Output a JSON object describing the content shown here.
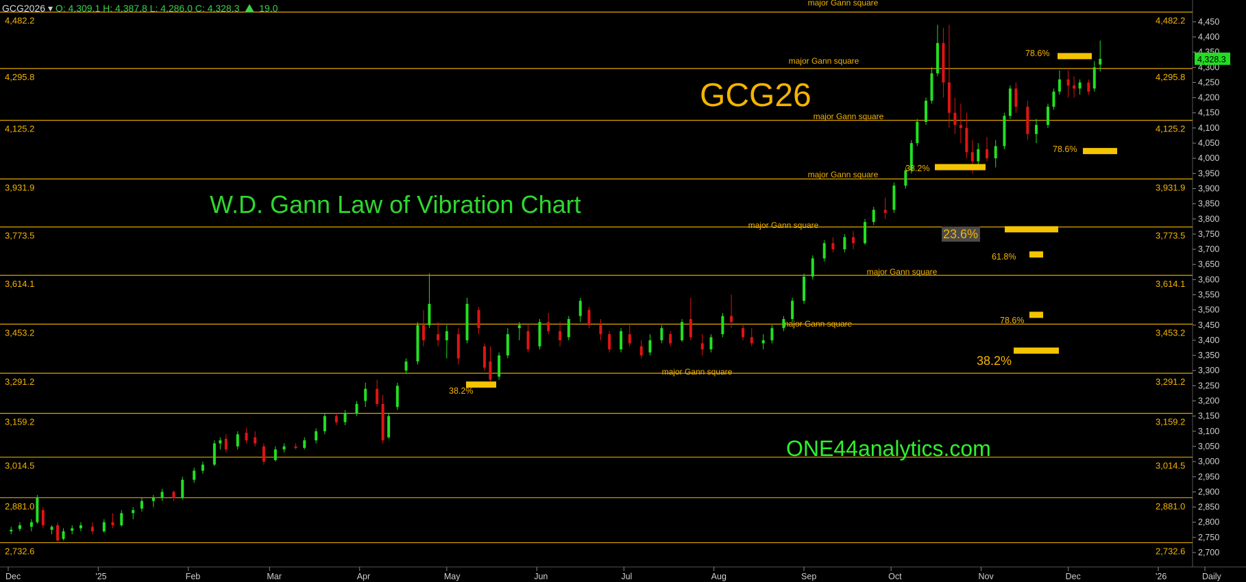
{
  "header": {
    "symbol": "GCG2026",
    "dropdown_icon": "chevron-down-icon",
    "ohlc_text": "O: 4,309.1 H: 4,387.8 L: 4,286.0 C: 4,328.3",
    "change_icon": "up-triangle-icon",
    "change": "19.0"
  },
  "titles": {
    "contract": "GCG26",
    "chart_name": "W.D. Gann Law of Vibration Chart",
    "website": "ONE44analytics.com"
  },
  "colors": {
    "background": "#000000",
    "gann_line": "#e0a800",
    "gann_label": "#f5b400",
    "up_candle": "#22e022",
    "down_candle": "#e01414",
    "axis_text": "#d0d0d0",
    "last_price_bg": "#22dd22",
    "retracement_bar": "#f5c400"
  },
  "chart_data": {
    "type": "candlestick",
    "timeframe": "Daily",
    "ylim": [
      2700,
      4470
    ],
    "y_ticks": [
      2700,
      2750,
      2800,
      2850,
      2900,
      2950,
      3000,
      3050,
      3100,
      3150,
      3200,
      3250,
      3300,
      3350,
      3400,
      3450,
      3500,
      3550,
      3600,
      3650,
      3700,
      3750,
      3800,
      3850,
      3900,
      3950,
      4000,
      4050,
      4100,
      4150,
      4200,
      4250,
      4300,
      4350,
      4400,
      4450
    ],
    "x_ticks": [
      "Dec",
      "'25",
      "Feb",
      "Mar",
      "Apr",
      "May",
      "Jun",
      "Jul",
      "Aug",
      "Sep",
      "Oct",
      "Nov",
      "Dec",
      "'26",
      "Daily"
    ],
    "last_price": "4,328.3",
    "gann_levels": [
      {
        "value": 4482.2,
        "label": "4,482.2",
        "caption": "major Gann square"
      },
      {
        "value": 4295.8,
        "label": "4,295.8",
        "caption": "major Gann square"
      },
      {
        "value": 4125.2,
        "label": "4,125.2",
        "caption": "major Gann square"
      },
      {
        "value": 3931.9,
        "label": "3,931.9",
        "caption": "major Gann square"
      },
      {
        "value": 3773.5,
        "label": "3,773.5",
        "caption": "major Gann square"
      },
      {
        "value": 3614.1,
        "label": "3,614.1",
        "caption": "major Gann square"
      },
      {
        "value": 3453.2,
        "label": "3,453.2",
        "caption": "major Gann square"
      },
      {
        "value": 3291.2,
        "label": "3,291.2",
        "caption": "major Gann square"
      },
      {
        "value": 3159.2,
        "label": "3,159.2",
        "caption": ""
      },
      {
        "value": 3014.5,
        "label": "3,014.5",
        "caption": ""
      },
      {
        "value": 2881.0,
        "label": "2,881.0",
        "caption": ""
      },
      {
        "value": 2732.6,
        "label": "2,732.6",
        "caption": ""
      }
    ],
    "retracements": [
      {
        "label": "38.2%",
        "date": "2025-05-18",
        "price": 3255
      },
      {
        "label": "38.2%",
        "date": "2025-10-29",
        "price": 3972
      },
      {
        "label": "78.6%",
        "date": "2025-12-12",
        "price": 4338
      },
      {
        "label": "78.6%",
        "date": "2025-12-18",
        "price": 4025
      },
      {
        "label": "23.6%",
        "date": "2025-11-28",
        "price": 3767
      },
      {
        "label": "61.8%",
        "date": "2025-11-30",
        "price": 3684
      },
      {
        "label": "78.6%",
        "date": "2025-11-30",
        "price": 3485
      },
      {
        "label": "38.2%",
        "date": "2025-11-30",
        "price": 3367
      }
    ],
    "candles": [
      {
        "date": "2024-12-02",
        "open": 2770,
        "high": 2785,
        "low": 2760,
        "close": 2775
      },
      {
        "date": "2024-12-05",
        "open": 2778,
        "high": 2800,
        "low": 2770,
        "close": 2790
      },
      {
        "date": "2024-12-09",
        "open": 2785,
        "high": 2810,
        "low": 2770,
        "close": 2800
      },
      {
        "date": "2024-12-11",
        "open": 2800,
        "high": 2890,
        "low": 2795,
        "close": 2880
      },
      {
        "date": "2024-12-13",
        "open": 2840,
        "high": 2850,
        "low": 2780,
        "close": 2790
      },
      {
        "date": "2024-12-16",
        "open": 2775,
        "high": 2790,
        "low": 2760,
        "close": 2785
      },
      {
        "date": "2024-12-18",
        "open": 2790,
        "high": 2800,
        "low": 2735,
        "close": 2740
      },
      {
        "date": "2024-12-20",
        "open": 2745,
        "high": 2780,
        "low": 2740,
        "close": 2770
      },
      {
        "date": "2024-12-23",
        "open": 2772,
        "high": 2790,
        "low": 2760,
        "close": 2780
      },
      {
        "date": "2024-12-26",
        "open": 2780,
        "high": 2800,
        "low": 2770,
        "close": 2790
      },
      {
        "date": "2024-12-30",
        "open": 2785,
        "high": 2800,
        "low": 2760,
        "close": 2770
      },
      {
        "date": "2025-01-03",
        "open": 2770,
        "high": 2810,
        "low": 2765,
        "close": 2800
      },
      {
        "date": "2025-01-06",
        "open": 2800,
        "high": 2830,
        "low": 2780,
        "close": 2790
      },
      {
        "date": "2025-01-09",
        "open": 2790,
        "high": 2840,
        "low": 2785,
        "close": 2830
      },
      {
        "date": "2025-01-13",
        "open": 2830,
        "high": 2850,
        "low": 2810,
        "close": 2840
      },
      {
        "date": "2025-01-16",
        "open": 2845,
        "high": 2880,
        "low": 2835,
        "close": 2870
      },
      {
        "date": "2025-01-20",
        "open": 2870,
        "high": 2890,
        "low": 2850,
        "close": 2880
      },
      {
        "date": "2025-01-23",
        "open": 2880,
        "high": 2910,
        "low": 2870,
        "close": 2900
      },
      {
        "date": "2025-01-27",
        "open": 2900,
        "high": 2905,
        "low": 2870,
        "close": 2880
      },
      {
        "date": "2025-01-30",
        "open": 2880,
        "high": 2950,
        "low": 2875,
        "close": 2940
      },
      {
        "date": "2025-02-03",
        "open": 2940,
        "high": 2980,
        "low": 2930,
        "close": 2970
      },
      {
        "date": "2025-02-06",
        "open": 2970,
        "high": 3000,
        "low": 2960,
        "close": 2990
      },
      {
        "date": "2025-02-10",
        "open": 2990,
        "high": 3070,
        "low": 2985,
        "close": 3060
      },
      {
        "date": "2025-02-12",
        "open": 3060,
        "high": 3080,
        "low": 3040,
        "close": 3070
      },
      {
        "date": "2025-02-14",
        "open": 3075,
        "high": 3090,
        "low": 3030,
        "close": 3040
      },
      {
        "date": "2025-02-18",
        "open": 3050,
        "high": 3100,
        "low": 3040,
        "close": 3090
      },
      {
        "date": "2025-02-21",
        "open": 3095,
        "high": 3110,
        "low": 3060,
        "close": 3070
      },
      {
        "date": "2025-02-24",
        "open": 3080,
        "high": 3100,
        "low": 3050,
        "close": 3060
      },
      {
        "date": "2025-02-27",
        "open": 3050,
        "high": 3060,
        "low": 2990,
        "close": 3000
      },
      {
        "date": "2025-03-03",
        "open": 3005,
        "high": 3050,
        "low": 3000,
        "close": 3040
      },
      {
        "date": "2025-03-06",
        "open": 3040,
        "high": 3060,
        "low": 3030,
        "close": 3050
      },
      {
        "date": "2025-03-10",
        "open": 3050,
        "high": 3060,
        "low": 3040,
        "close": 3045
      },
      {
        "date": "2025-03-13",
        "open": 3045,
        "high": 3080,
        "low": 3040,
        "close": 3070
      },
      {
        "date": "2025-03-17",
        "open": 3070,
        "high": 3110,
        "low": 3060,
        "close": 3100
      },
      {
        "date": "2025-03-20",
        "open": 3100,
        "high": 3160,
        "low": 3090,
        "close": 3150
      },
      {
        "date": "2025-03-24",
        "open": 3150,
        "high": 3160,
        "low": 3120,
        "close": 3130
      },
      {
        "date": "2025-03-27",
        "open": 3130,
        "high": 3170,
        "low": 3120,
        "close": 3160
      },
      {
        "date": "2025-03-31",
        "open": 3160,
        "high": 3200,
        "low": 3150,
        "close": 3190
      },
      {
        "date": "2025-04-03",
        "open": 3200,
        "high": 3260,
        "low": 3180,
        "close": 3240
      },
      {
        "date": "2025-04-07",
        "open": 3240,
        "high": 3270,
        "low": 3180,
        "close": 3190
      },
      {
        "date": "2025-04-09",
        "open": 3190,
        "high": 3220,
        "low": 3060,
        "close": 3070
      },
      {
        "date": "2025-04-11",
        "open": 3080,
        "high": 3160,
        "low": 3075,
        "close": 3150
      },
      {
        "date": "2025-04-14",
        "open": 3180,
        "high": 3260,
        "low": 3170,
        "close": 3250
      },
      {
        "date": "2025-04-17",
        "open": 3300,
        "high": 3340,
        "low": 3290,
        "close": 3330
      },
      {
        "date": "2025-04-21",
        "open": 3330,
        "high": 3460,
        "low": 3320,
        "close": 3450
      },
      {
        "date": "2025-04-23",
        "open": 3450,
        "high": 3500,
        "low": 3380,
        "close": 3400
      },
      {
        "date": "2025-04-25",
        "open": 3450,
        "high": 3620,
        "low": 3440,
        "close": 3520
      },
      {
        "date": "2025-04-28",
        "open": 3420,
        "high": 3460,
        "low": 3380,
        "close": 3400
      },
      {
        "date": "2025-05-01",
        "open": 3400,
        "high": 3450,
        "low": 3340,
        "close": 3430
      },
      {
        "date": "2025-05-05",
        "open": 3420,
        "high": 3440,
        "low": 3320,
        "close": 3340
      },
      {
        "date": "2025-05-08",
        "open": 3400,
        "high": 3540,
        "low": 3390,
        "close": 3520
      },
      {
        "date": "2025-05-12",
        "open": 3500,
        "high": 3510,
        "low": 3420,
        "close": 3440
      },
      {
        "date": "2025-05-14",
        "open": 3380,
        "high": 3390,
        "low": 3300,
        "close": 3310
      },
      {
        "date": "2025-05-16",
        "open": 3330,
        "high": 3380,
        "low": 3250,
        "close": 3270
      },
      {
        "date": "2025-05-19",
        "open": 3280,
        "high": 3360,
        "low": 3270,
        "close": 3350
      },
      {
        "date": "2025-05-22",
        "open": 3350,
        "high": 3440,
        "low": 3340,
        "close": 3420
      },
      {
        "date": "2025-05-26",
        "open": 3440,
        "high": 3460,
        "low": 3400,
        "close": 3450
      },
      {
        "date": "2025-05-29",
        "open": 3430,
        "high": 3450,
        "low": 3360,
        "close": 3370
      },
      {
        "date": "2025-06-02",
        "open": 3380,
        "high": 3470,
        "low": 3370,
        "close": 3460
      },
      {
        "date": "2025-06-05",
        "open": 3460,
        "high": 3490,
        "low": 3420,
        "close": 3430
      },
      {
        "date": "2025-06-09",
        "open": 3430,
        "high": 3460,
        "low": 3380,
        "close": 3400
      },
      {
        "date": "2025-06-12",
        "open": 3410,
        "high": 3480,
        "low": 3400,
        "close": 3470
      },
      {
        "date": "2025-06-16",
        "open": 3480,
        "high": 3540,
        "low": 3460,
        "close": 3530
      },
      {
        "date": "2025-06-19",
        "open": 3500,
        "high": 3510,
        "low": 3440,
        "close": 3450
      },
      {
        "date": "2025-06-23",
        "open": 3450,
        "high": 3470,
        "low": 3400,
        "close": 3420
      },
      {
        "date": "2025-06-26",
        "open": 3420,
        "high": 3430,
        "low": 3360,
        "close": 3370
      },
      {
        "date": "2025-06-30",
        "open": 3370,
        "high": 3440,
        "low": 3360,
        "close": 3430
      },
      {
        "date": "2025-07-03",
        "open": 3420,
        "high": 3450,
        "low": 3380,
        "close": 3390
      },
      {
        "date": "2025-07-07",
        "open": 3380,
        "high": 3400,
        "low": 3340,
        "close": 3350
      },
      {
        "date": "2025-07-10",
        "open": 3360,
        "high": 3420,
        "low": 3350,
        "close": 3400
      },
      {
        "date": "2025-07-14",
        "open": 3400,
        "high": 3450,
        "low": 3390,
        "close": 3440
      },
      {
        "date": "2025-07-17",
        "open": 3420,
        "high": 3430,
        "low": 3380,
        "close": 3390
      },
      {
        "date": "2025-07-21",
        "open": 3400,
        "high": 3470,
        "low": 3395,
        "close": 3460
      },
      {
        "date": "2025-07-24",
        "open": 3470,
        "high": 3540,
        "low": 3400,
        "close": 3410
      },
      {
        "date": "2025-07-28",
        "open": 3390,
        "high": 3420,
        "low": 3350,
        "close": 3370
      },
      {
        "date": "2025-07-31",
        "open": 3370,
        "high": 3420,
        "low": 3360,
        "close": 3410
      },
      {
        "date": "2025-08-04",
        "open": 3420,
        "high": 3490,
        "low": 3410,
        "close": 3480
      },
      {
        "date": "2025-08-07",
        "open": 3480,
        "high": 3550,
        "low": 3440,
        "close": 3460
      },
      {
        "date": "2025-08-11",
        "open": 3440,
        "high": 3450,
        "low": 3400,
        "close": 3410
      },
      {
        "date": "2025-08-14",
        "open": 3410,
        "high": 3440,
        "low": 3380,
        "close": 3390
      },
      {
        "date": "2025-08-18",
        "open": 3390,
        "high": 3420,
        "low": 3370,
        "close": 3400
      },
      {
        "date": "2025-08-21",
        "open": 3400,
        "high": 3450,
        "low": 3390,
        "close": 3440
      },
      {
        "date": "2025-08-25",
        "open": 3440,
        "high": 3480,
        "low": 3430,
        "close": 3470
      },
      {
        "date": "2025-08-28",
        "open": 3470,
        "high": 3540,
        "low": 3460,
        "close": 3530
      },
      {
        "date": "2025-09-01",
        "open": 3530,
        "high": 3620,
        "low": 3520,
        "close": 3610
      },
      {
        "date": "2025-09-04",
        "open": 3610,
        "high": 3680,
        "low": 3600,
        "close": 3670
      },
      {
        "date": "2025-09-08",
        "open": 3670,
        "high": 3730,
        "low": 3660,
        "close": 3720
      },
      {
        "date": "2025-09-11",
        "open": 3720,
        "high": 3740,
        "low": 3690,
        "close": 3700
      },
      {
        "date": "2025-09-15",
        "open": 3700,
        "high": 3750,
        "low": 3690,
        "close": 3740
      },
      {
        "date": "2025-09-18",
        "open": 3740,
        "high": 3760,
        "low": 3700,
        "close": 3720
      },
      {
        "date": "2025-09-22",
        "open": 3720,
        "high": 3800,
        "low": 3715,
        "close": 3790
      },
      {
        "date": "2025-09-25",
        "open": 3790,
        "high": 3840,
        "low": 3780,
        "close": 3830
      },
      {
        "date": "2025-09-29",
        "open": 3830,
        "high": 3870,
        "low": 3800,
        "close": 3820
      },
      {
        "date": "2025-10-02",
        "open": 3830,
        "high": 3920,
        "low": 3820,
        "close": 3910
      },
      {
        "date": "2025-10-06",
        "open": 3910,
        "high": 3970,
        "low": 3900,
        "close": 3960
      },
      {
        "date": "2025-10-08",
        "open": 3960,
        "high": 4060,
        "low": 3950,
        "close": 4050
      },
      {
        "date": "2025-10-10",
        "open": 4050,
        "high": 4130,
        "low": 4040,
        "close": 4120
      },
      {
        "date": "2025-10-13",
        "open": 4120,
        "high": 4200,
        "low": 4110,
        "close": 4190
      },
      {
        "date": "2025-10-15",
        "open": 4190,
        "high": 4300,
        "low": 4180,
        "close": 4280
      },
      {
        "date": "2025-10-17",
        "open": 4280,
        "high": 4440,
        "low": 4270,
        "close": 4380
      },
      {
        "date": "2025-10-19",
        "open": 4380,
        "high": 4430,
        "low": 4200,
        "close": 4250
      },
      {
        "date": "2025-10-21",
        "open": 4250,
        "high": 4440,
        "low": 4100,
        "close": 4150
      },
      {
        "date": "2025-10-23",
        "open": 4150,
        "high": 4200,
        "low": 4080,
        "close": 4110
      },
      {
        "date": "2025-10-25",
        "open": 4110,
        "high": 4180,
        "low": 4050,
        "close": 4100
      },
      {
        "date": "2025-10-27",
        "open": 4100,
        "high": 4150,
        "low": 4000,
        "close": 4020
      },
      {
        "date": "2025-10-29",
        "open": 4020,
        "high": 4060,
        "low": 3950,
        "close": 3990
      },
      {
        "date": "2025-10-31",
        "open": 3990,
        "high": 4050,
        "low": 3980,
        "close": 4030
      },
      {
        "date": "2025-11-03",
        "open": 4030,
        "high": 4070,
        "low": 3990,
        "close": 4000
      },
      {
        "date": "2025-11-06",
        "open": 4000,
        "high": 4060,
        "low": 3970,
        "close": 4040
      },
      {
        "date": "2025-11-09",
        "open": 4040,
        "high": 4150,
        "low": 4030,
        "close": 4140
      },
      {
        "date": "2025-11-11",
        "open": 4140,
        "high": 4240,
        "low": 4130,
        "close": 4230
      },
      {
        "date": "2025-11-13",
        "open": 4230,
        "high": 4250,
        "low": 4150,
        "close": 4170
      },
      {
        "date": "2025-11-17",
        "open": 4170,
        "high": 4190,
        "low": 4060,
        "close": 4080
      },
      {
        "date": "2025-11-20",
        "open": 4080,
        "high": 4130,
        "low": 4050,
        "close": 4110
      },
      {
        "date": "2025-11-24",
        "open": 4110,
        "high": 4180,
        "low": 4100,
        "close": 4170
      },
      {
        "date": "2025-11-26",
        "open": 4170,
        "high": 4230,
        "low": 4160,
        "close": 4220
      },
      {
        "date": "2025-11-28",
        "open": 4220,
        "high": 4290,
        "low": 4210,
        "close": 4260
      },
      {
        "date": "2025-12-01",
        "open": 4260,
        "high": 4290,
        "low": 4200,
        "close": 4240
      },
      {
        "date": "2025-12-03",
        "open": 4240,
        "high": 4270,
        "low": 4200,
        "close": 4230
      },
      {
        "date": "2025-12-05",
        "open": 4230,
        "high": 4260,
        "low": 4210,
        "close": 4250
      },
      {
        "date": "2025-12-08",
        "open": 4250,
        "high": 4260,
        "low": 4210,
        "close": 4220
      },
      {
        "date": "2025-12-10",
        "open": 4230,
        "high": 4320,
        "low": 4220,
        "close": 4300
      },
      {
        "date": "2025-12-12",
        "open": 4309,
        "high": 4388,
        "low": 4286,
        "close": 4328
      }
    ]
  }
}
